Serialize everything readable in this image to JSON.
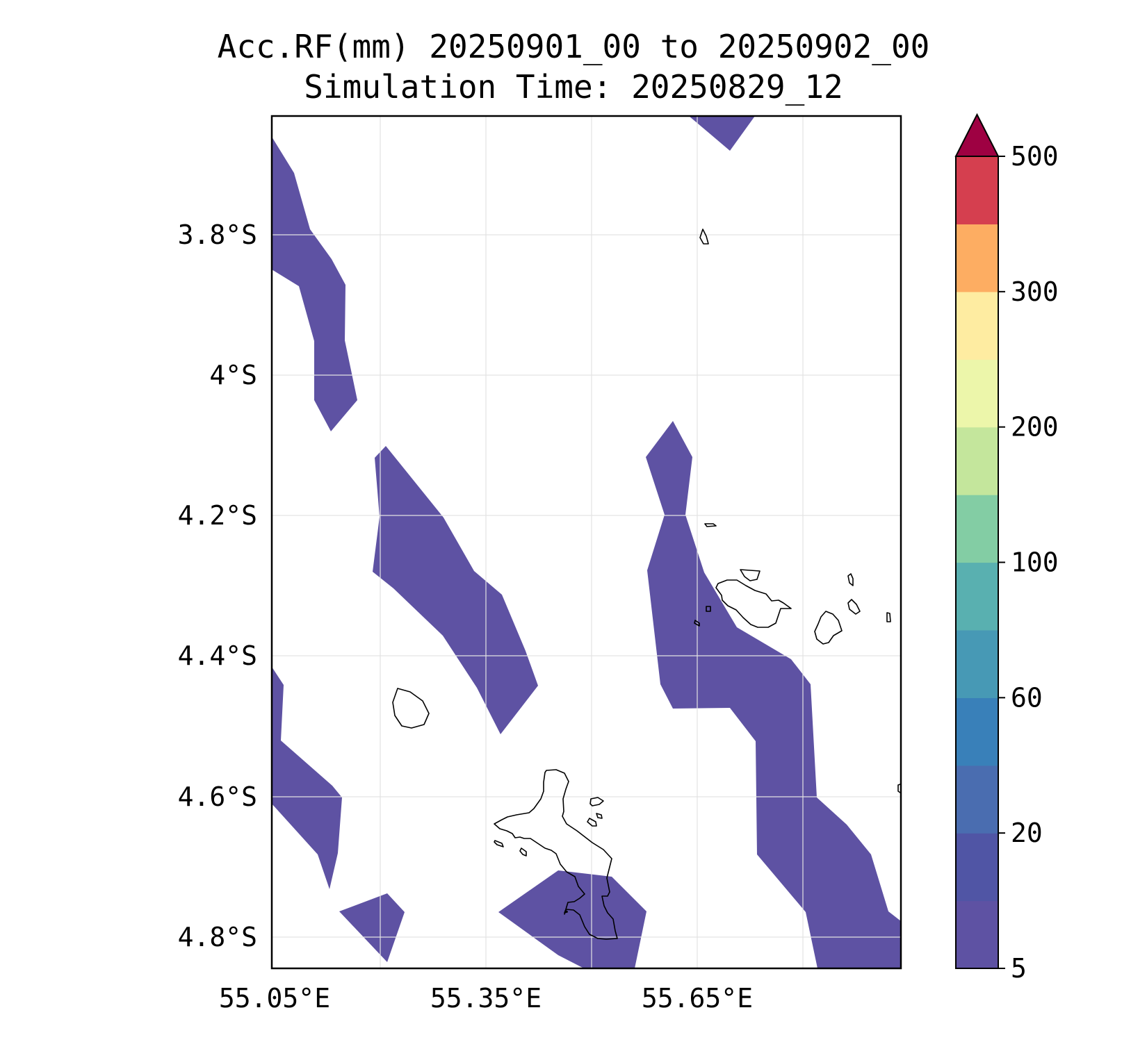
{
  "title": {
    "line1": "Acc.RF(mm) 20250901_00 to 20250902_00",
    "line2": "Simulation Time: 20250829_12"
  },
  "map": {
    "lat_labels": [
      "3.8°S",
      "4°S",
      "4.2°S",
      "4.4°S",
      "4.6°S",
      "4.8°S"
    ],
    "lon_labels": [
      "55.05°E",
      "55.35°E",
      "55.65°E"
    ],
    "lat_values": [
      -3.8,
      -4.0,
      -4.2,
      -4.4,
      -4.6,
      -4.8
    ],
    "lon_values": [
      55.05,
      55.35,
      55.65
    ],
    "extent": {
      "lon_min": 55.05,
      "lon_max": 55.944,
      "lat_min": -4.843,
      "lat_max": -3.629
    },
    "fill_color": "#5e52a3",
    "fill_range_mm": [
      5,
      10
    ],
    "gridlines": true
  },
  "colorbar": {
    "tick_labels": [
      "5",
      "20",
      "60",
      "100",
      "200",
      "300",
      "500"
    ],
    "levels": [
      5,
      10,
      20,
      40,
      60,
      80,
      100,
      150,
      200,
      250,
      300,
      400,
      500
    ],
    "colors": [
      "#5e52a3",
      "#5055a5",
      "#4a6db0",
      "#3980b9",
      "#4799b5",
      "#59b0b0",
      "#83cda4",
      "#c4e69c",
      "#ecf6aa",
      "#feeca1",
      "#fdad62",
      "#d53f4f"
    ],
    "extend_color": "#9e0142",
    "extend": "max"
  }
}
